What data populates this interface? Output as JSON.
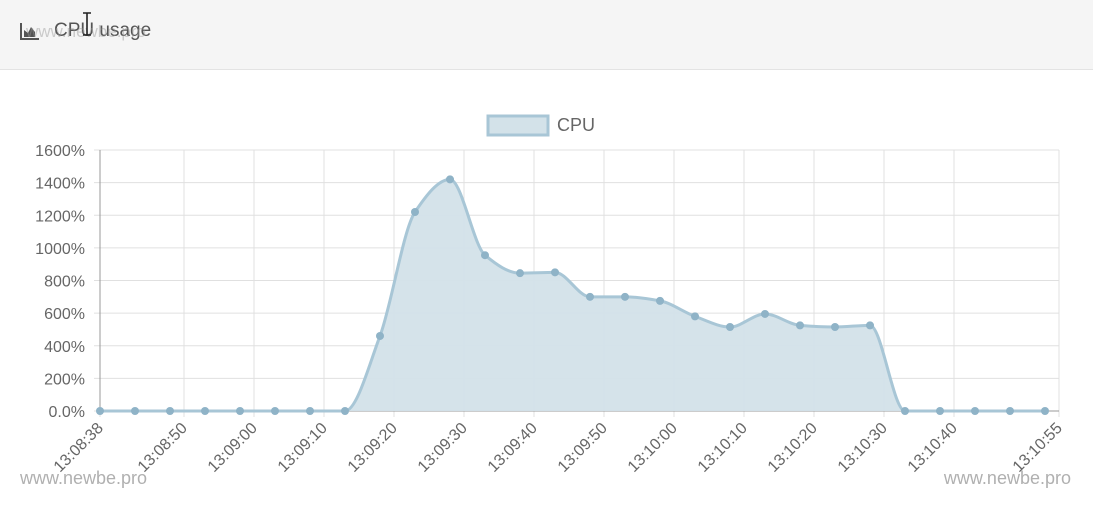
{
  "header": {
    "title": "CPU usage",
    "icon": "area-chart-icon"
  },
  "watermark": {
    "text": "www.newbe.pro"
  },
  "colors": {
    "line": "#a8c6d6",
    "fill": "#d3e2e9",
    "point": "#8fb3c7",
    "grid": "#e0e0e0",
    "axis": "#999999",
    "header_bg": "#f5f5f5"
  },
  "chart_data": {
    "type": "area",
    "legend": {
      "label": "CPU",
      "position": "top"
    },
    "x_tick_labels": [
      "13:08:38",
      "13:08:50",
      "13:09:00",
      "13:09:10",
      "13:09:20",
      "13:09:30",
      "13:09:40",
      "13:09:50",
      "13:10:00",
      "13:10:10",
      "13:10:20",
      "13:10:30",
      "13:10:40",
      "13:10:55"
    ],
    "x_tick_times": [
      "13:08:38",
      "13:08:50",
      "13:09:00",
      "13:09:10",
      "13:09:20",
      "13:09:30",
      "13:09:40",
      "13:09:50",
      "13:10:00",
      "13:10:10",
      "13:10:20",
      "13:10:30",
      "13:10:40",
      "13:10:55"
    ],
    "x_range": [
      "13:08:38",
      "13:10:55"
    ],
    "y_tick_labels": [
      "0.0%",
      "200%",
      "400%",
      "600%",
      "800%",
      "1000%",
      "1200%",
      "1400%",
      "1600%"
    ],
    "ylim": [
      0,
      1600
    ],
    "grid": true,
    "series": [
      {
        "name": "CPU",
        "points": [
          {
            "t": "13:08:38",
            "v": 0
          },
          {
            "t": "13:08:43",
            "v": 0
          },
          {
            "t": "13:08:48",
            "v": 0
          },
          {
            "t": "13:08:53",
            "v": 0
          },
          {
            "t": "13:08:58",
            "v": 0
          },
          {
            "t": "13:09:03",
            "v": 0
          },
          {
            "t": "13:09:08",
            "v": 0
          },
          {
            "t": "13:09:13",
            "v": 0
          },
          {
            "t": "13:09:18",
            "v": 460
          },
          {
            "t": "13:09:23",
            "v": 1220
          },
          {
            "t": "13:09:28",
            "v": 1420
          },
          {
            "t": "13:09:33",
            "v": 955
          },
          {
            "t": "13:09:38",
            "v": 845
          },
          {
            "t": "13:09:43",
            "v": 850
          },
          {
            "t": "13:09:48",
            "v": 700
          },
          {
            "t": "13:09:53",
            "v": 700
          },
          {
            "t": "13:09:58",
            "v": 675
          },
          {
            "t": "13:10:03",
            "v": 580
          },
          {
            "t": "13:10:08",
            "v": 515
          },
          {
            "t": "13:10:13",
            "v": 595
          },
          {
            "t": "13:10:18",
            "v": 525
          },
          {
            "t": "13:10:23",
            "v": 515
          },
          {
            "t": "13:10:28",
            "v": 525
          },
          {
            "t": "13:10:33",
            "v": 0
          },
          {
            "t": "13:10:38",
            "v": 0
          },
          {
            "t": "13:10:43",
            "v": 0
          },
          {
            "t": "13:10:48",
            "v": 0
          },
          {
            "t": "13:10:53",
            "v": 0
          }
        ]
      }
    ]
  }
}
